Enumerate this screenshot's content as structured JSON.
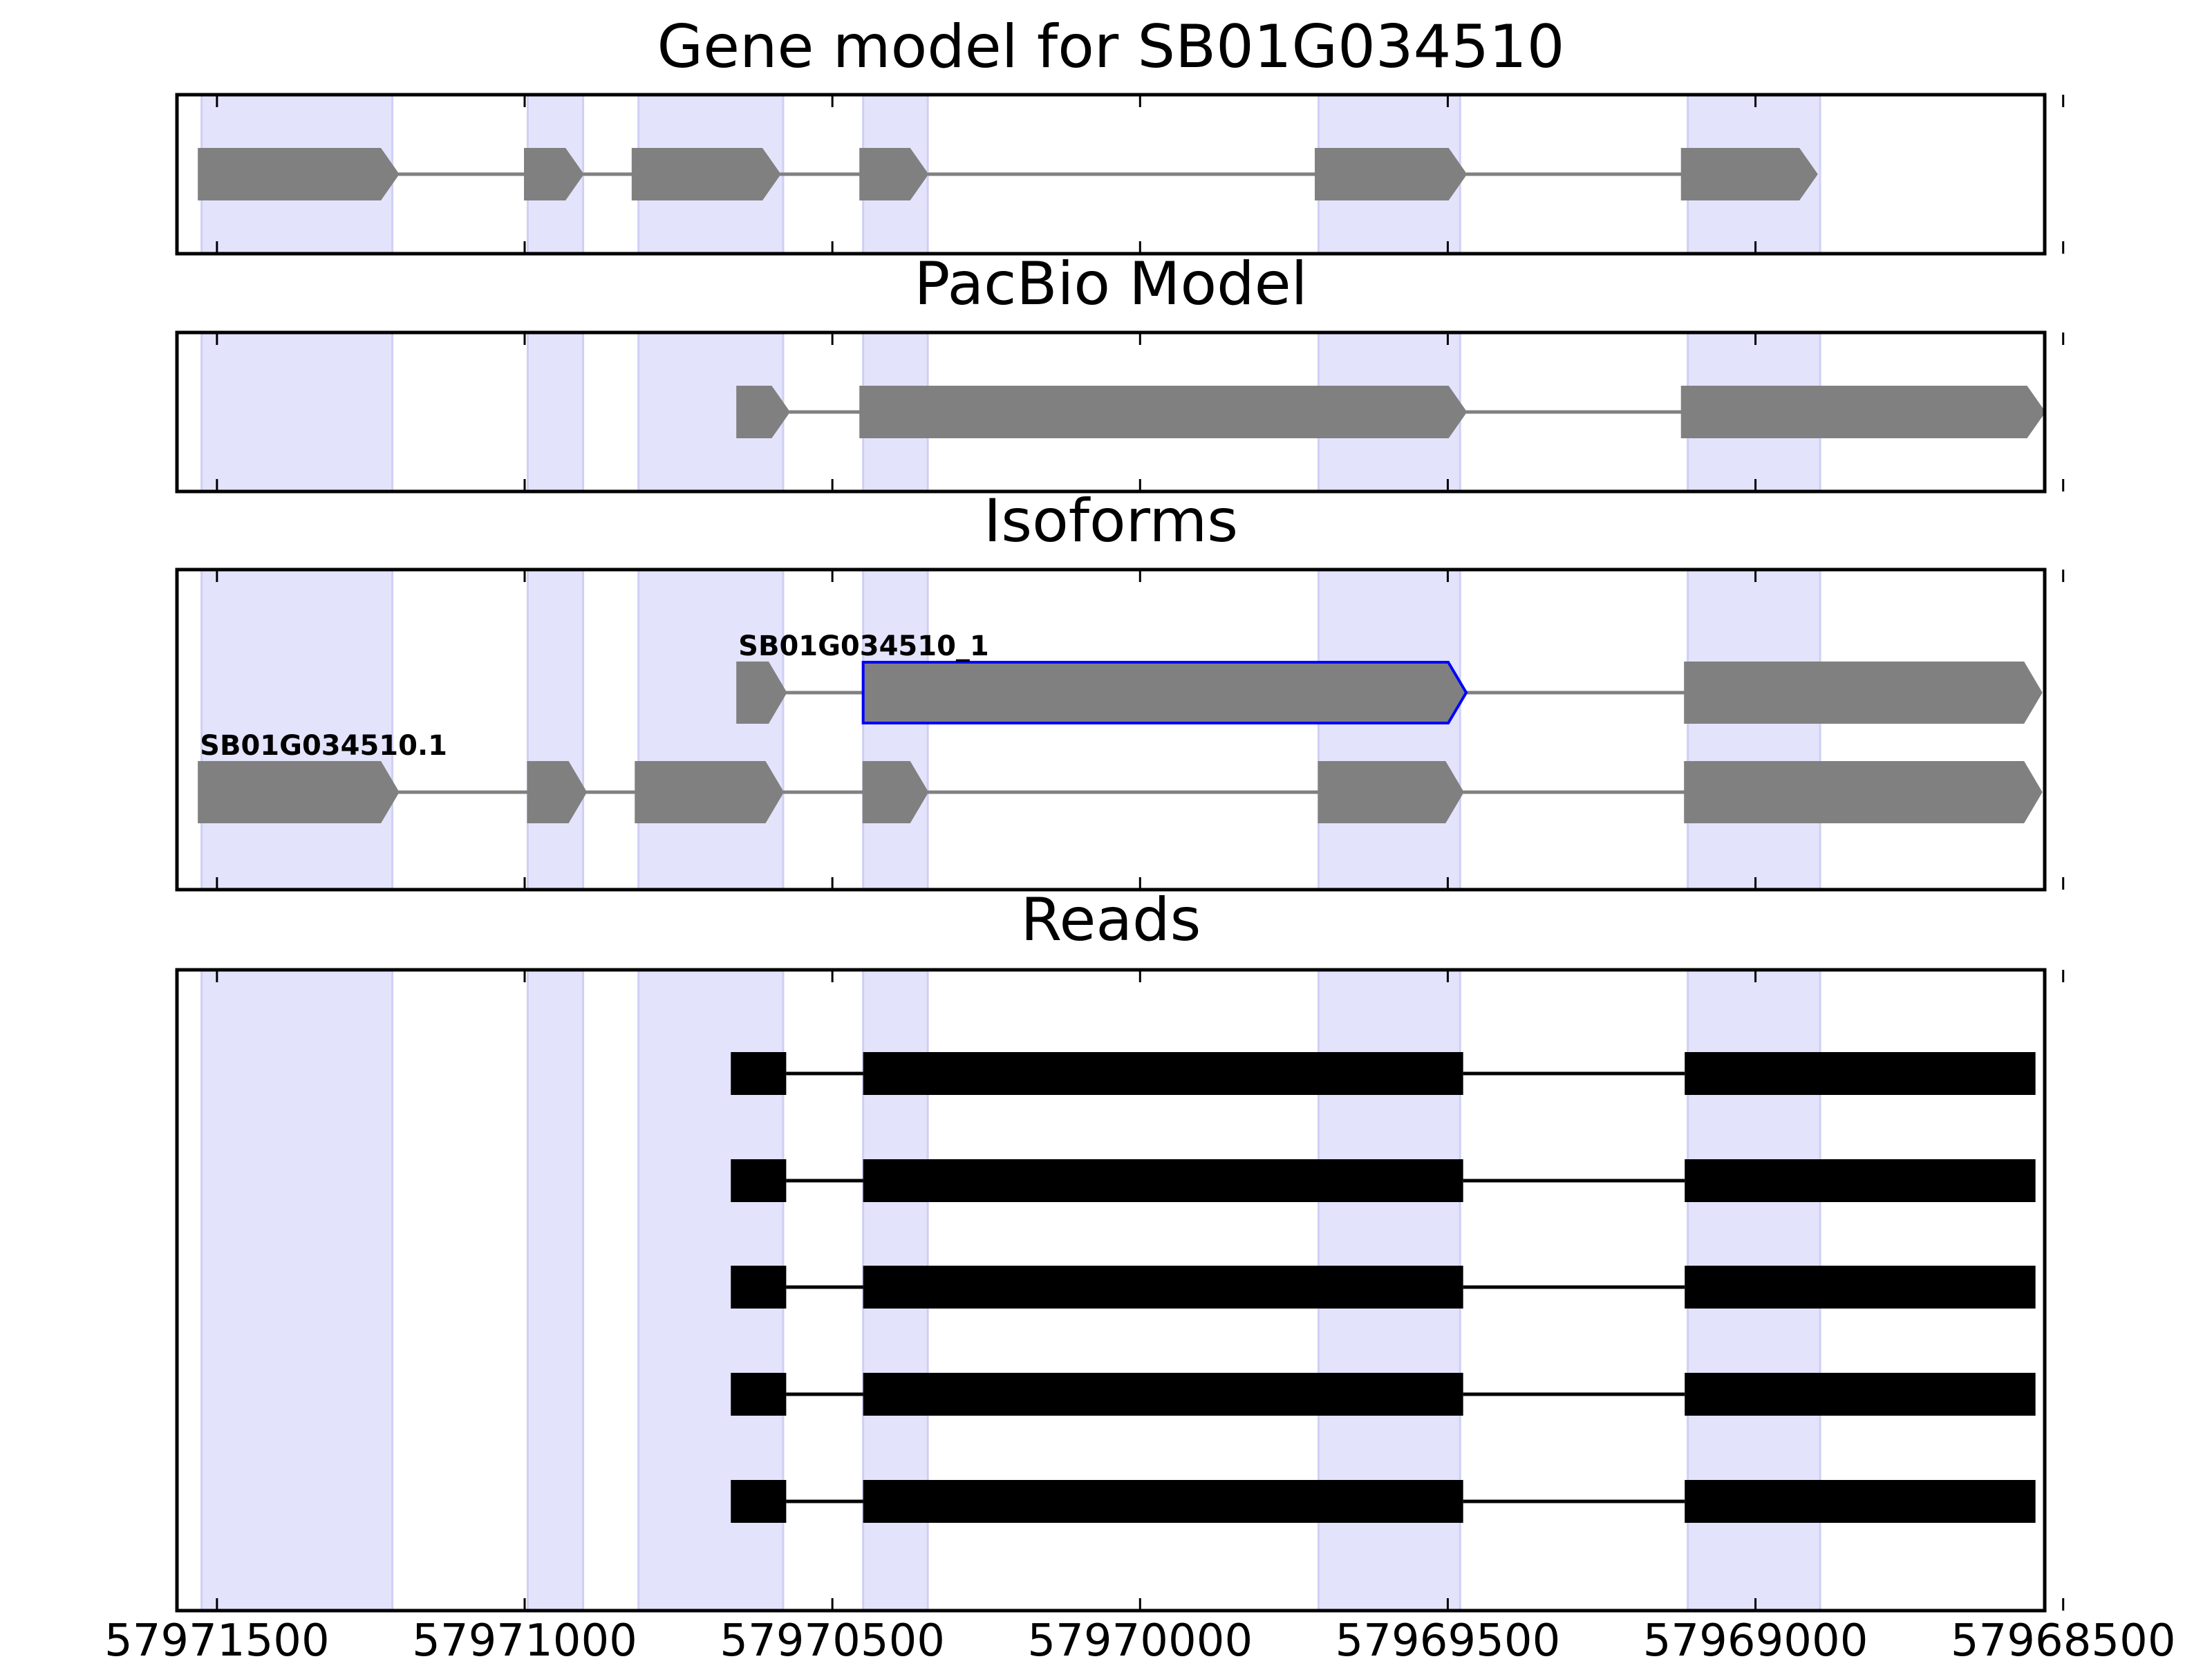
{
  "figure": {
    "xaxis_ticks": [
      57971500,
      57971000,
      57970500,
      57970000,
      57969500,
      57969000,
      57968500
    ],
    "xaxis_tick_labels": [
      "57971500",
      "57971000",
      "57970500",
      "57970000",
      "57969500",
      "57969000",
      "57968500"
    ]
  },
  "chart_data": [
    {
      "type": "gene-track",
      "title": "Gene model for SB01G034510",
      "xlim": [
        57971565,
        57968530
      ],
      "x_direction": "descending",
      "exon_shading": [
        [
          57971525,
          57971215
        ],
        [
          57970995,
          57970905
        ],
        [
          57970815,
          57970580
        ],
        [
          57970450,
          57970345
        ],
        [
          57969710,
          57969480
        ],
        [
          57969110,
          57968895
        ]
      ],
      "transcripts": [
        {
          "label": "",
          "strand": "minus",
          "color": "#808080",
          "highlighted_exon": null,
          "exons": [
            [
              57971530,
              57971205
            ],
            [
              57971000,
              57970905
            ],
            [
              57970825,
              57970585
            ],
            [
              57970455,
              57970345
            ],
            [
              57969715,
              57969470
            ],
            [
              57969120,
              57968900
            ]
          ]
        }
      ]
    },
    {
      "type": "gene-track",
      "title": "PacBio Model",
      "xlim": [
        57971565,
        57968530
      ],
      "x_direction": "descending",
      "exon_shading": [
        [
          57971525,
          57971215
        ],
        [
          57970995,
          57970905
        ],
        [
          57970815,
          57970580
        ],
        [
          57970450,
          57970345
        ],
        [
          57969710,
          57969480
        ],
        [
          57969110,
          57968895
        ]
      ],
      "transcripts": [
        {
          "label": "",
          "strand": "minus",
          "color": "#808080",
          "highlighted_exon": null,
          "exons": [
            [
              57970655,
              57970570
            ],
            [
              57970455,
              57969470
            ],
            [
              57969120,
              57968530
            ]
          ]
        }
      ]
    },
    {
      "type": "gene-track",
      "title": "Isoforms",
      "xlim": [
        57971565,
        57968530
      ],
      "x_direction": "descending",
      "exon_shading": [
        [
          57971525,
          57971215
        ],
        [
          57970995,
          57970905
        ],
        [
          57970815,
          57970580
        ],
        [
          57970450,
          57970345
        ],
        [
          57969710,
          57969480
        ],
        [
          57969110,
          57968895
        ]
      ],
      "transcripts": [
        {
          "label": "SB01G034510_1",
          "strand": "minus",
          "color": "#808080",
          "highlight_color": "#0000ff",
          "highlighted_exon": 1,
          "exons": [
            [
              57970655,
              57970575
            ],
            [
              57970450,
              57969470
            ],
            [
              57969115,
              57968535
            ]
          ]
        },
        {
          "label": "SB01G034510.1",
          "strand": "minus",
          "color": "#808080",
          "highlighted_exon": null,
          "exons": [
            [
              57971530,
              57971205
            ],
            [
              57970995,
              57970900
            ],
            [
              57970820,
              57970580
            ],
            [
              57970450,
              57970345
            ],
            [
              57969710,
              57969475
            ],
            [
              57969115,
              57968535
            ]
          ]
        }
      ]
    },
    {
      "type": "read-track",
      "title": "Reads",
      "xlim": [
        57971565,
        57968530
      ],
      "x_direction": "descending",
      "exon_shading": [
        [
          57971525,
          57971215
        ],
        [
          57970995,
          57970905
        ],
        [
          57970815,
          57970580
        ],
        [
          57970450,
          57970345
        ],
        [
          57969710,
          57969480
        ],
        [
          57969110,
          57968895
        ]
      ],
      "reads": [
        {
          "exons": [
            [
              57970665,
              57970575
            ],
            [
              57970450,
              57969475
            ],
            [
              57969115,
              57968545
            ]
          ]
        },
        {
          "exons": [
            [
              57970665,
              57970575
            ],
            [
              57970450,
              57969475
            ],
            [
              57969115,
              57968545
            ]
          ]
        },
        {
          "exons": [
            [
              57970665,
              57970575
            ],
            [
              57970450,
              57969475
            ],
            [
              57969115,
              57968545
            ]
          ]
        },
        {
          "exons": [
            [
              57970665,
              57970575
            ],
            [
              57970450,
              57969475
            ],
            [
              57969115,
              57968545
            ]
          ]
        },
        {
          "exons": [
            [
              57970665,
              57970575
            ],
            [
              57970450,
              57969475
            ],
            [
              57969115,
              57968545
            ]
          ]
        }
      ]
    }
  ],
  "colors": {
    "shading": "#e3e3fc",
    "shading_edge": "#cfcff5",
    "exon_gray": "#808080",
    "intron_gray": "#808080",
    "read_black": "#000000",
    "highlight_blue": "#0000ff",
    "frame": "#000000"
  }
}
